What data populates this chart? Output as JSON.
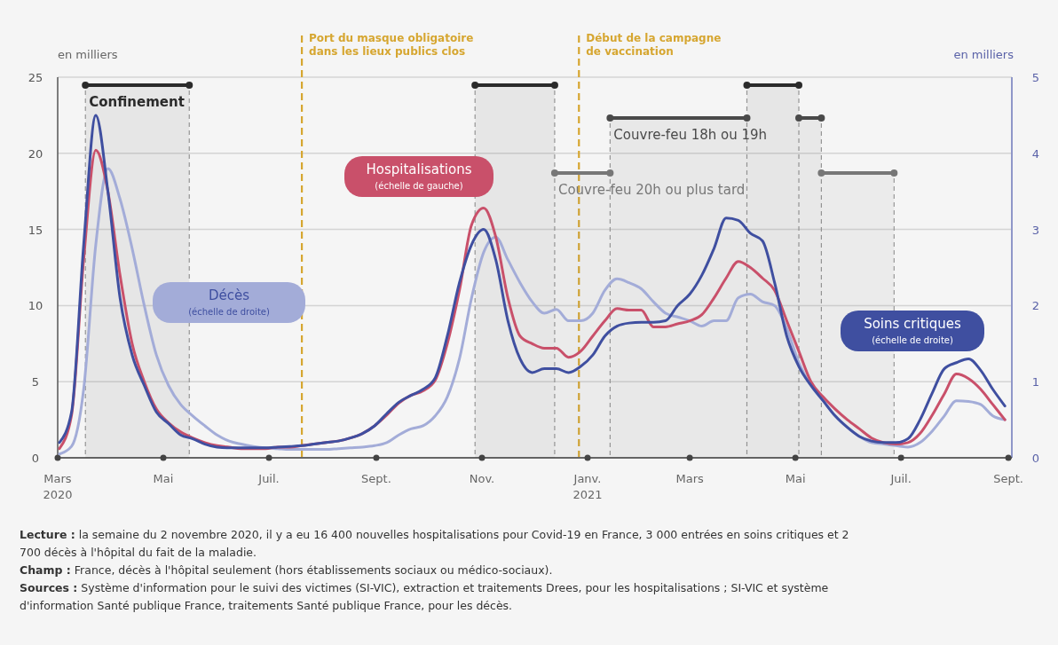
{
  "chart_data": {
    "type": "line",
    "ylabel": "en milliers",
    "y2label": "en milliers",
    "x": [
      "2020-03-02",
      "2020-03-09",
      "2020-03-16",
      "2020-03-23",
      "2020-03-30",
      "2020-04-06",
      "2020-04-13",
      "2020-04-20",
      "2020-04-27",
      "2020-05-04",
      "2020-05-11",
      "2020-05-18",
      "2020-05-25",
      "2020-06-01",
      "2020-06-08",
      "2020-06-15",
      "2020-06-22",
      "2020-06-29",
      "2020-07-06",
      "2020-07-13",
      "2020-07-20",
      "2020-07-27",
      "2020-08-03",
      "2020-08-10",
      "2020-08-17",
      "2020-08-24",
      "2020-08-31",
      "2020-09-07",
      "2020-09-14",
      "2020-09-21",
      "2020-09-28",
      "2020-10-05",
      "2020-10-12",
      "2020-10-19",
      "2020-10-26",
      "2020-11-02",
      "2020-11-09",
      "2020-11-16",
      "2020-11-23",
      "2020-11-30",
      "2020-12-07",
      "2020-12-14",
      "2020-12-21",
      "2020-12-28",
      "2021-01-04",
      "2021-01-11",
      "2021-01-18",
      "2021-01-25",
      "2021-02-01",
      "2021-02-08",
      "2021-02-15",
      "2021-02-22",
      "2021-03-01",
      "2021-03-08",
      "2021-03-15",
      "2021-03-22",
      "2021-03-29",
      "2021-04-05",
      "2021-04-12",
      "2021-04-19",
      "2021-04-26",
      "2021-05-03",
      "2021-05-10",
      "2021-05-17",
      "2021-05-24",
      "2021-05-31",
      "2021-06-07",
      "2021-06-14",
      "2021-06-21",
      "2021-06-28",
      "2021-07-05",
      "2021-07-12",
      "2021-07-19",
      "2021-07-26",
      "2021-08-02",
      "2021-08-09",
      "2021-08-16",
      "2021-08-23",
      "2021-08-30"
    ],
    "series": [
      {
        "name": "Décès (échelle de droite)",
        "color": "#a3acd8",
        "axis": "y2",
        "values": [
          0.05,
          0.15,
          0.9,
          2.8,
          3.8,
          3.4,
          2.75,
          2.0,
          1.35,
          0.95,
          0.7,
          0.55,
          0.42,
          0.3,
          0.22,
          0.18,
          0.15,
          0.13,
          0.12,
          0.11,
          0.11,
          0.11,
          0.11,
          0.12,
          0.13,
          0.14,
          0.16,
          0.2,
          0.3,
          0.38,
          0.42,
          0.55,
          0.8,
          1.3,
          2.1,
          2.7,
          2.9,
          2.6,
          2.3,
          2.05,
          1.9,
          1.95,
          1.8,
          1.8,
          1.9,
          2.2,
          2.35,
          2.3,
          2.22,
          2.05,
          1.9,
          1.85,
          1.8,
          1.73,
          1.8,
          1.8,
          2.1,
          2.15,
          2.05,
          2.0,
          1.7,
          1.25,
          0.95,
          0.75,
          0.55,
          0.4,
          0.28,
          0.2,
          0.18,
          0.16,
          0.14,
          0.2,
          0.35,
          0.55,
          0.75,
          0.74,
          0.7,
          0.55,
          0.5
        ]
      },
      {
        "name": "Hospitalisations (échelle de gauche)",
        "color": "#c9506a",
        "values": [
          0.6,
          2.8,
          13,
          20.2,
          17.5,
          12,
          7.5,
          5,
          3.2,
          2.3,
          1.7,
          1.3,
          1.0,
          0.8,
          0.7,
          0.6,
          0.6,
          0.6,
          0.7,
          0.7,
          0.8,
          0.9,
          1.0,
          1.1,
          1.3,
          1.6,
          2.1,
          2.8,
          3.6,
          4.1,
          4.4,
          5.1,
          7.5,
          11,
          15.3,
          16.4,
          14.5,
          10.5,
          8.0,
          7.5,
          7.2,
          7.2,
          6.6,
          7.0,
          8.0,
          9.0,
          9.8,
          9.7,
          9.7,
          8.6,
          8.6,
          8.8,
          9.0,
          9.4,
          10.5,
          11.8,
          12.9,
          12.5,
          11.8,
          11.0,
          9.0,
          7.0,
          5.0,
          4.0,
          3.2,
          2.5,
          1.9,
          1.3,
          1.0,
          0.9,
          1.0,
          1.6,
          2.8,
          4.2,
          5.5,
          5.2,
          4.5,
          3.5,
          2.5
        ]
      },
      {
        "name": "Soins critiques (échelle de droite)",
        "color": "#3f4fa0",
        "axis": "y2",
        "values": [
          0.2,
          0.6,
          2.8,
          4.5,
          3.5,
          2.1,
          1.35,
          0.95,
          0.6,
          0.45,
          0.3,
          0.25,
          0.18,
          0.14,
          0.13,
          0.13,
          0.13,
          0.13,
          0.14,
          0.15,
          0.16,
          0.18,
          0.2,
          0.22,
          0.26,
          0.32,
          0.42,
          0.58,
          0.73,
          0.82,
          0.9,
          1.05,
          1.6,
          2.3,
          2.8,
          3.0,
          2.6,
          1.8,
          1.3,
          1.12,
          1.17,
          1.17,
          1.12,
          1.2,
          1.35,
          1.6,
          1.73,
          1.77,
          1.78,
          1.78,
          1.8,
          2.0,
          2.15,
          2.4,
          2.75,
          3.15,
          3.12,
          2.95,
          2.85,
          2.3,
          1.6,
          1.2,
          0.95,
          0.75,
          0.55,
          0.4,
          0.28,
          0.22,
          0.2,
          0.2,
          0.25,
          0.5,
          0.85,
          1.17,
          1.25,
          1.3,
          1.15,
          0.9,
          0.68
        ]
      }
    ],
    "xlim": [
      "2020-03-01",
      "2021-09-03"
    ],
    "xticks": [
      {
        "value": "2020-03-01",
        "label": "Mars\n2020"
      },
      {
        "value": "2020-05-01",
        "label": "Mai"
      },
      {
        "value": "2020-07-01",
        "label": "Juil."
      },
      {
        "value": "2020-09-01",
        "label": "Sept."
      },
      {
        "value": "2020-11-01",
        "label": "Nov."
      },
      {
        "value": "2021-01-01",
        "label": "Janv.\n2021"
      },
      {
        "value": "2021-03-01",
        "label": "Mars"
      },
      {
        "value": "2021-05-01",
        "label": "Mai"
      },
      {
        "value": "2021-07-01",
        "label": "Juil."
      },
      {
        "value": "2021-09-01",
        "label": "Sept."
      }
    ],
    "ylim": [
      0,
      25
    ],
    "yticks": [
      0,
      5,
      10,
      15,
      20,
      25
    ],
    "y2lim": [
      0,
      5
    ],
    "y2ticks": [
      0,
      1,
      2,
      3,
      4,
      5
    ],
    "grid": "y",
    "legend": false,
    "line_style": "solid",
    "marker": "none",
    "ref_lines": [
      {
        "axis": "x",
        "value": "2020-07-20",
        "label": "Port du masque obligatoire\ndans les lieux publics clos",
        "color": "#d6a630",
        "line_style": "dashed"
      },
      {
        "axis": "x",
        "value": "2020-12-27",
        "label": "Début de la campagne\nde vaccination",
        "color": "#d6a630",
        "line_style": "dashed"
      }
    ],
    "bands": [
      {
        "axis": "x",
        "from": "2020-03-17",
        "to": "2020-05-16",
        "label": "Confinement",
        "color": "#2b2b2b"
      },
      {
        "axis": "x",
        "from": "2020-10-28",
        "to": "2020-12-13",
        "color": "#2b2b2b"
      },
      {
        "axis": "x",
        "from": "2021-04-03",
        "to": "2021-05-03",
        "color": "#2b2b2b"
      },
      {
        "axis": "x",
        "from": "2021-01-14",
        "to": "2021-04-03",
        "label": "Couvre-feu 18h ou 19h",
        "color": "#4a4a4a"
      },
      {
        "axis": "x",
        "from": "2021-05-03",
        "to": "2021-05-16",
        "color": "#4a4a4a"
      },
      {
        "axis": "x",
        "from": "2020-12-13",
        "to": "2021-01-14",
        "label": "Couvre-feu 20h ou plus tard",
        "color": "#777777"
      },
      {
        "axis": "x",
        "from": "2021-05-16",
        "to": "2021-06-27",
        "color": "#777777"
      }
    ],
    "annotations": [
      "Lecture : la semaine du 2 novembre 2020, il y a eu 16 400 nouvelles hospitalisations pour Covid-19 en France, 3 000 entrées en soins critiques et 2 700 décès à l'hôpital du fait de la maladie.",
      "Champ : France, décès à l'hôpital seulement (hors établissements sociaux ou médico-sociaux).",
      "Sources : Système d'information pour le suivi des victimes (SI-VIC), extraction et traitements Drees, pour les hospitalisations ; SI-VIC et système d'information Santé publique France, traitements Santé publique France, pour les décès."
    ]
  }
}
